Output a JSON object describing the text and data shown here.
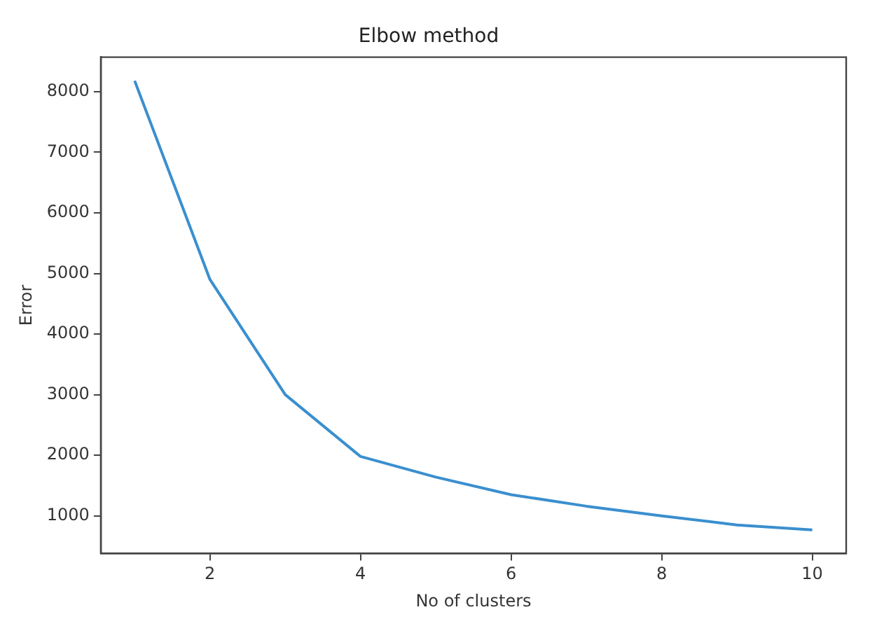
{
  "chart_data": {
    "type": "line",
    "title": "Elbow method",
    "xlabel": "No of clusters",
    "ylabel": "Error",
    "x": [
      1,
      2,
      3,
      4,
      5,
      6,
      7,
      8,
      9,
      10
    ],
    "series": [
      {
        "color": "#3a8fcf",
        "values": [
          8180,
          4900,
          3000,
          1980,
          1640,
          1350,
          1160,
          1000,
          850,
          770
        ]
      }
    ],
    "xlim": [
      0.55,
      10.45
    ],
    "xticks": [
      2,
      4,
      6,
      8,
      10
    ],
    "ylim": [
      380,
      8570
    ],
    "yticks": [
      1000,
      2000,
      3000,
      4000,
      5000,
      6000,
      7000,
      8000
    ],
    "grid": false,
    "legend": false,
    "marker": "none",
    "line_style": "solid"
  }
}
